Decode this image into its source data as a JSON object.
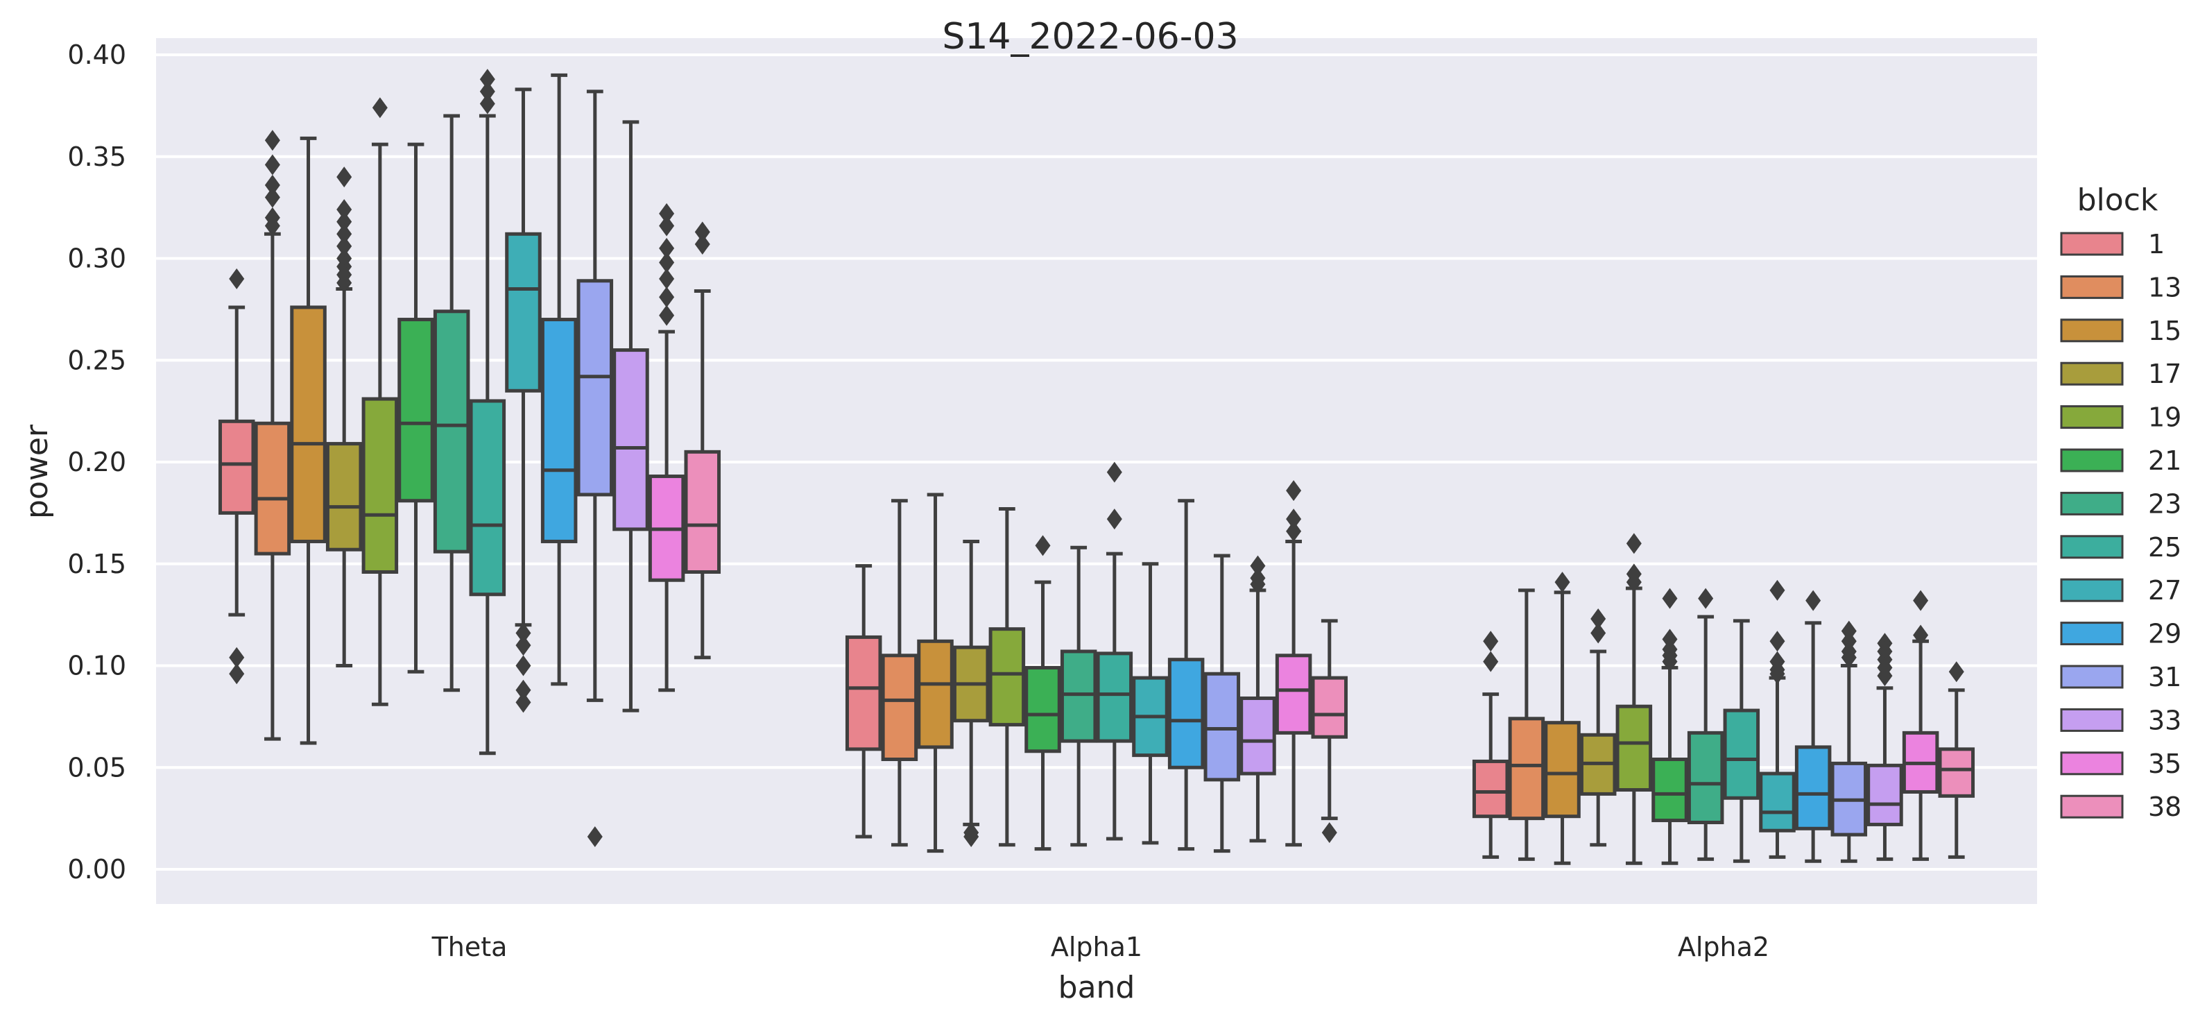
{
  "chart_data": {
    "type": "box",
    "title": "S14_2022-06-03",
    "xlabel": "band",
    "ylabel": "power",
    "ylim": [
      -0.017,
      0.41
    ],
    "yticks": [
      "0.00",
      "0.05",
      "0.10",
      "0.15",
      "0.20",
      "0.25",
      "0.30",
      "0.35",
      "0.40"
    ],
    "grid": true,
    "legend": {
      "title": "block",
      "placement": "right"
    },
    "categories": [
      "Theta",
      "Alpha1",
      "Alpha2"
    ],
    "series": [
      {
        "name": "1",
        "color": "#e8848d",
        "boxes": [
          {
            "whislo": 0.125,
            "q1": 0.175,
            "med": 0.199,
            "q3": 0.22,
            "whishi": 0.276,
            "fliers": [
              0.29,
              0.104,
              0.096
            ]
          },
          {
            "whislo": 0.016,
            "q1": 0.059,
            "med": 0.089,
            "q3": 0.114,
            "whishi": 0.149,
            "fliers": []
          },
          {
            "whislo": 0.006,
            "q1": 0.026,
            "med": 0.038,
            "q3": 0.053,
            "whishi": 0.086,
            "fliers": [
              0.112,
              0.102
            ]
          }
        ]
      },
      {
        "name": "13",
        "color": "#e08d5f",
        "boxes": [
          {
            "whislo": 0.064,
            "q1": 0.155,
            "med": 0.182,
            "q3": 0.219,
            "whishi": 0.312,
            "fliers": [
              0.358,
              0.346,
              0.336,
              0.33,
              0.32,
              0.316
            ]
          },
          {
            "whislo": 0.012,
            "q1": 0.054,
            "med": 0.083,
            "q3": 0.105,
            "whishi": 0.181,
            "fliers": []
          },
          {
            "whislo": 0.005,
            "q1": 0.025,
            "med": 0.051,
            "q3": 0.074,
            "whishi": 0.137,
            "fliers": []
          }
        ]
      },
      {
        "name": "15",
        "color": "#c8913b",
        "boxes": [
          {
            "whislo": 0.062,
            "q1": 0.161,
            "med": 0.209,
            "q3": 0.276,
            "whishi": 0.359,
            "fliers": []
          },
          {
            "whislo": 0.009,
            "q1": 0.06,
            "med": 0.091,
            "q3": 0.112,
            "whishi": 0.184,
            "fliers": []
          },
          {
            "whislo": 0.003,
            "q1": 0.026,
            "med": 0.047,
            "q3": 0.072,
            "whishi": 0.136,
            "fliers": [
              0.141
            ]
          }
        ]
      },
      {
        "name": "17",
        "color": "#a89d3c",
        "boxes": [
          {
            "whislo": 0.1,
            "q1": 0.157,
            "med": 0.178,
            "q3": 0.209,
            "whishi": 0.285,
            "fliers": [
              0.34,
              0.324,
              0.318,
              0.312,
              0.306,
              0.3,
              0.296,
              0.292,
              0.288
            ]
          },
          {
            "whislo": 0.022,
            "q1": 0.073,
            "med": 0.091,
            "q3": 0.109,
            "whishi": 0.161,
            "fliers": [
              0.016,
              0.018
            ]
          },
          {
            "whislo": 0.012,
            "q1": 0.037,
            "med": 0.052,
            "q3": 0.066,
            "whishi": 0.107,
            "fliers": [
              0.123,
              0.116
            ]
          }
        ]
      },
      {
        "name": "19",
        "color": "#86a93b",
        "boxes": [
          {
            "whislo": 0.081,
            "q1": 0.146,
            "med": 0.174,
            "q3": 0.231,
            "whishi": 0.356,
            "fliers": [
              0.374
            ]
          },
          {
            "whislo": 0.012,
            "q1": 0.071,
            "med": 0.096,
            "q3": 0.118,
            "whishi": 0.177,
            "fliers": []
          },
          {
            "whislo": 0.003,
            "q1": 0.039,
            "med": 0.062,
            "q3": 0.08,
            "whishi": 0.138,
            "fliers": [
              0.16,
              0.145,
              0.141
            ]
          }
        ]
      },
      {
        "name": "21",
        "color": "#3bb055",
        "boxes": [
          {
            "whislo": 0.097,
            "q1": 0.181,
            "med": 0.219,
            "q3": 0.27,
            "whishi": 0.356,
            "fliers": []
          },
          {
            "whislo": 0.01,
            "q1": 0.058,
            "med": 0.076,
            "q3": 0.099,
            "whishi": 0.141,
            "fliers": [
              0.159
            ]
          },
          {
            "whislo": 0.003,
            "q1": 0.024,
            "med": 0.037,
            "q3": 0.054,
            "whishi": 0.099,
            "fliers": [
              0.133,
              0.113,
              0.108,
              0.105,
              0.102
            ]
          }
        ]
      },
      {
        "name": "23",
        "color": "#3fad88",
        "boxes": [
          {
            "whislo": 0.088,
            "q1": 0.156,
            "med": 0.218,
            "q3": 0.274,
            "whishi": 0.37,
            "fliers": []
          },
          {
            "whislo": 0.012,
            "q1": 0.063,
            "med": 0.086,
            "q3": 0.107,
            "whishi": 0.158,
            "fliers": []
          },
          {
            "whislo": 0.005,
            "q1": 0.023,
            "med": 0.042,
            "q3": 0.067,
            "whishi": 0.124,
            "fliers": [
              0.133
            ]
          }
        ]
      },
      {
        "name": "25",
        "color": "#3cae9e",
        "boxes": [
          {
            "whislo": 0.057,
            "q1": 0.135,
            "med": 0.169,
            "q3": 0.23,
            "whishi": 0.37,
            "fliers": [
              0.388,
              0.382,
              0.376
            ]
          },
          {
            "whislo": 0.015,
            "q1": 0.063,
            "med": 0.086,
            "q3": 0.106,
            "whishi": 0.155,
            "fliers": [
              0.195,
              0.172
            ]
          },
          {
            "whislo": 0.004,
            "q1": 0.035,
            "med": 0.054,
            "q3": 0.078,
            "whishi": 0.122,
            "fliers": []
          }
        ]
      },
      {
        "name": "27",
        "color": "#3eaeb6",
        "boxes": [
          {
            "whislo": 0.12,
            "q1": 0.235,
            "med": 0.285,
            "q3": 0.312,
            "whishi": 0.383,
            "fliers": [
              0.116,
              0.11,
              0.1,
              0.088,
              0.082
            ]
          },
          {
            "whislo": 0.013,
            "q1": 0.056,
            "med": 0.075,
            "q3": 0.094,
            "whishi": 0.15,
            "fliers": []
          },
          {
            "whislo": 0.006,
            "q1": 0.019,
            "med": 0.028,
            "q3": 0.047,
            "whishi": 0.094,
            "fliers": [
              0.137,
              0.112,
              0.102,
              0.098,
              0.096
            ]
          }
        ]
      },
      {
        "name": "29",
        "color": "#3fa7e0",
        "boxes": [
          {
            "whislo": 0.091,
            "q1": 0.161,
            "med": 0.196,
            "q3": 0.27,
            "whishi": 0.39,
            "fliers": []
          },
          {
            "whislo": 0.01,
            "q1": 0.05,
            "med": 0.073,
            "q3": 0.103,
            "whishi": 0.181,
            "fliers": []
          },
          {
            "whislo": 0.004,
            "q1": 0.02,
            "med": 0.037,
            "q3": 0.06,
            "whishi": 0.121,
            "fliers": [
              0.132
            ]
          }
        ]
      },
      {
        "name": "31",
        "color": "#9aa6ef",
        "boxes": [
          {
            "whislo": 0.083,
            "q1": 0.184,
            "med": 0.242,
            "q3": 0.289,
            "whishi": 0.382,
            "fliers": [
              0.016
            ]
          },
          {
            "whislo": 0.009,
            "q1": 0.044,
            "med": 0.069,
            "q3": 0.096,
            "whishi": 0.154,
            "fliers": []
          },
          {
            "whislo": 0.004,
            "q1": 0.017,
            "med": 0.034,
            "q3": 0.052,
            "whishi": 0.1,
            "fliers": [
              0.117,
              0.112,
              0.107,
              0.104
            ]
          }
        ]
      },
      {
        "name": "33",
        "color": "#c59ef0",
        "boxes": [
          {
            "whislo": 0.078,
            "q1": 0.167,
            "med": 0.207,
            "q3": 0.255,
            "whishi": 0.367,
            "fliers": []
          },
          {
            "whislo": 0.014,
            "q1": 0.047,
            "med": 0.063,
            "q3": 0.084,
            "whishi": 0.137,
            "fliers": [
              0.149,
              0.143,
              0.14
            ]
          },
          {
            "whislo": 0.005,
            "q1": 0.022,
            "med": 0.032,
            "q3": 0.051,
            "whishi": 0.089,
            "fliers": [
              0.111,
              0.107,
              0.103,
              0.099,
              0.095
            ]
          }
        ]
      },
      {
        "name": "35",
        "color": "#eb83df",
        "boxes": [
          {
            "whislo": 0.088,
            "q1": 0.142,
            "med": 0.167,
            "q3": 0.193,
            "whishi": 0.264,
            "fliers": [
              0.322,
              0.316,
              0.305,
              0.298,
              0.29,
              0.281,
              0.272
            ]
          },
          {
            "whislo": 0.012,
            "q1": 0.067,
            "med": 0.088,
            "q3": 0.105,
            "whishi": 0.161,
            "fliers": [
              0.186,
              0.172,
              0.166
            ]
          },
          {
            "whislo": 0.005,
            "q1": 0.038,
            "med": 0.052,
            "q3": 0.067,
            "whishi": 0.112,
            "fliers": [
              0.132,
              0.115
            ]
          }
        ]
      },
      {
        "name": "38",
        "color": "#ec8fbb",
        "boxes": [
          {
            "whislo": 0.104,
            "q1": 0.146,
            "med": 0.169,
            "q3": 0.205,
            "whishi": 0.284,
            "fliers": [
              0.313,
              0.307
            ]
          },
          {
            "whislo": 0.025,
            "q1": 0.065,
            "med": 0.076,
            "q3": 0.094,
            "whishi": 0.122,
            "fliers": [
              0.018
            ]
          },
          {
            "whislo": 0.006,
            "q1": 0.036,
            "med": 0.049,
            "q3": 0.059,
            "whishi": 0.088,
            "fliers": [
              0.097
            ]
          }
        ]
      }
    ]
  }
}
